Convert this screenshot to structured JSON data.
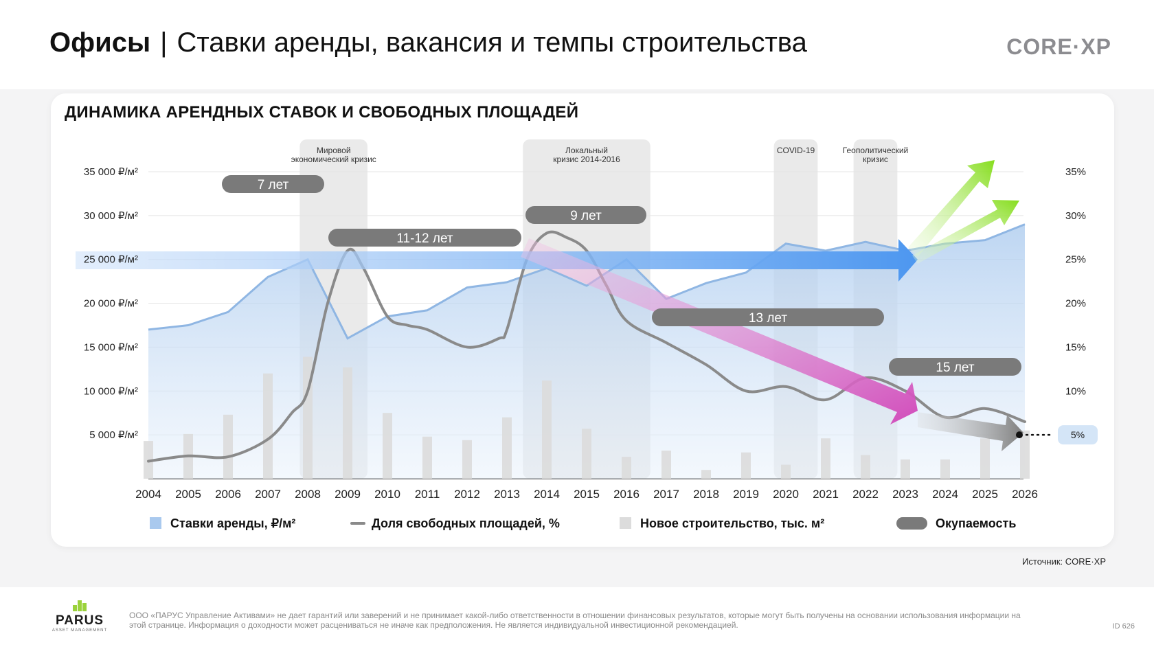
{
  "header": {
    "title_main": "Офисы",
    "title_separator": "|",
    "title_sub": "Ставки аренды, вакансия и темпы строительства",
    "brand": "CORE·XP"
  },
  "card": {
    "title": "ДИНАМИКА АРЕНДНЫХ СТАВОК И СВОБОДНЫХ ПЛОЩАДЕЙ"
  },
  "chart_data": {
    "type": "area",
    "x": [
      "2004",
      "2005",
      "2006",
      "2007",
      "2008",
      "2009",
      "2010",
      "2011",
      "2012",
      "2013",
      "2014",
      "2015",
      "2016",
      "2017",
      "2018",
      "2019",
      "2020",
      "2021",
      "2022",
      "2023",
      "2024",
      "2025",
      "2026"
    ],
    "y_left": {
      "ticks": [
        "35 000 ₽/м²",
        "30 000 ₽/м²",
        "25 000 ₽/м²",
        "20 000 ₽/м²",
        "15 000 ₽/м²",
        "10 000 ₽/м²",
        "5 000 ₽/м²"
      ],
      "tick_values": [
        35000,
        30000,
        25000,
        20000,
        15000,
        10000,
        5000
      ],
      "range": [
        0,
        36000
      ]
    },
    "y_right": {
      "ticks": [
        "35%",
        "30%",
        "25%",
        "20%",
        "15%",
        "10%",
        "5%"
      ],
      "tick_values": [
        35,
        30,
        25,
        20,
        15,
        10,
        5
      ],
      "range": [
        0,
        36
      ]
    },
    "series": [
      {
        "name": "Ставки аренды, ₽/м²",
        "kind": "area",
        "axis": "left",
        "color": "#8fb6e3",
        "values": [
          17000,
          17500,
          19000,
          23000,
          25000,
          16000,
          18500,
          19200,
          21800,
          22400,
          24000,
          22000,
          25000,
          20500,
          22300,
          23500,
          26800,
          26000,
          27000,
          26000,
          26800,
          27200,
          29000
        ]
      },
      {
        "name": "Доля свободных площадей, %",
        "kind": "line",
        "axis": "right",
        "color": "#8a8a8a",
        "x": [
          2004,
          2005,
          2006,
          2007,
          2007.6,
          2008,
          2008.5,
          2009,
          2009.4,
          2010,
          2010.5,
          2011,
          2012,
          2012.8,
          2013,
          2013.5,
          2014,
          2014.5,
          2015,
          2015.5,
          2016,
          2017,
          2018,
          2019,
          2020,
          2021,
          2022,
          2023,
          2024,
          2025,
          2026
        ],
        "values": [
          2,
          2.6,
          2.5,
          4.5,
          7.5,
          10,
          20,
          26,
          24,
          18.5,
          17.5,
          17,
          15,
          16,
          17,
          25,
          28,
          27.5,
          26,
          22,
          18,
          15.5,
          13,
          10,
          10.5,
          9,
          11.5,
          10,
          7,
          8,
          6.5
        ]
      },
      {
        "name": "Новое строительство, тыс. м²",
        "kind": "bar",
        "axis": "left",
        "color": "#dcdcdc",
        "values": [
          4300,
          5100,
          7300,
          12000,
          13900,
          12700,
          7500,
          4800,
          4400,
          7000,
          11200,
          5700,
          2500,
          3200,
          1000,
          3000,
          1600,
          4600,
          2700,
          2200,
          2200,
          4600,
          5500
        ]
      }
    ],
    "payback": {
      "name": "Окупаемость",
      "labels": [
        "7 лет",
        "11-12 лет",
        "9 лет",
        "13 лет",
        "15 лет"
      ]
    },
    "crisis_periods": [
      {
        "label": [
          "Мировой",
          "экономический кризис"
        ],
        "from": 2007.8,
        "to": 2009.5
      },
      {
        "label": [
          "Локальный",
          "кризис 2014-2016"
        ],
        "from": 2013.4,
        "to": 2016.6
      },
      {
        "label": [
          "COVID-19"
        ],
        "from": 2019.7,
        "to": 2020.8
      },
      {
        "label": [
          "Геополитический",
          "кризис"
        ],
        "from": 2021.7,
        "to": 2022.8
      }
    ],
    "end_marker": "5%",
    "legend": [
      "Ставки аренды, ₽/м²",
      "Доля свободных площадей, %",
      "Новое строительство, тыс. м²",
      "Окупаемость"
    ],
    "legend_position": "bottom",
    "colors": {
      "rent_area": "#c6dbf3",
      "rent_line": "#8fb6e3",
      "vacancy_line": "#8a8a8a",
      "bars": "#dcdcdc",
      "crisis_band": "#e6e6e6",
      "payback_pill": "#7a7a7a",
      "arrow_blue": "#4d97f0",
      "arrow_pink": "#d95cc3",
      "arrow_green": "#8fe02e",
      "arrow_gray": "#8a8a8a",
      "end_badge": "#d4e5f7"
    }
  },
  "source": "Источник: CORE·XP",
  "footer": {
    "logo": "PARUS",
    "logo_sub": "ASSET MANAGEMENT",
    "disclaimer": "ООО «ПАРУС Управление Активами» не дает гарантий или заверений и не принимает какой-либо ответственности в отношении финансовых результатов, которые могут быть получены на основании использования информации на этой странице. Информация о доходности может расцениваться не иначе как предположения. Не является индивидуальной инвестиционной рекомендацией.",
    "page_id": "ID 626"
  }
}
